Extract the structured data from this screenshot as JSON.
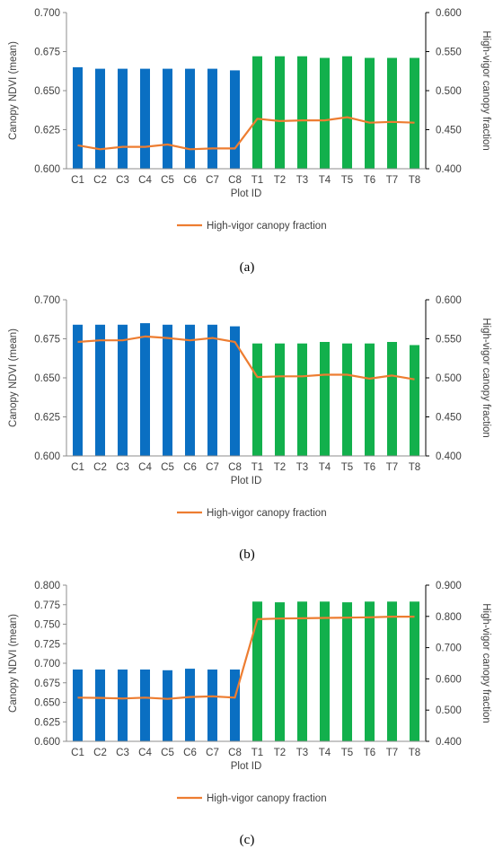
{
  "colors": {
    "control_bar": "#0a6fc2",
    "treatment_bar": "#12b04c",
    "line": "#ed7d31",
    "axis": "#8c8c8c"
  },
  "chart_data": [
    {
      "type": "bar",
      "panel": "a",
      "caption": "(a)",
      "categories": [
        "C1",
        "C2",
        "C3",
        "C4",
        "C5",
        "C6",
        "C7",
        "C8",
        "T1",
        "T2",
        "T3",
        "T4",
        "T5",
        "T6",
        "T7",
        "T8"
      ],
      "xlabel": "Plot ID",
      "ylabel": "Canopy NDVI (mean)",
      "ylabel_right": "High-vigor canopy fraction",
      "ylim": [
        0.6,
        0.7
      ],
      "yticks": [
        "0.600",
        "0.625",
        "0.650",
        "0.675",
        "0.700"
      ],
      "ylim_right": [
        0.4,
        0.6
      ],
      "yticks_right": [
        "0.400",
        "0.450",
        "0.500",
        "0.550",
        "0.600"
      ],
      "series": [
        {
          "values": [
            0.665,
            0.664,
            0.664,
            0.664,
            0.664,
            0.664,
            0.664,
            0.663,
            0.672,
            0.672,
            0.672,
            0.671,
            0.672,
            0.671,
            0.671,
            0.671
          ]
        },
        {
          "name": "High-vigor canopy fraction",
          "type": "line",
          "axis": "right",
          "values": [
            0.43,
            0.425,
            0.428,
            0.428,
            0.431,
            0.425,
            0.426,
            0.426,
            0.464,
            0.461,
            0.462,
            0.462,
            0.466,
            0.459,
            0.46,
            0.459
          ]
        }
      ],
      "legend": "bottom"
    },
    {
      "type": "bar",
      "panel": "b",
      "caption": "(b)",
      "categories": [
        "C1",
        "C2",
        "C3",
        "C4",
        "C5",
        "C6",
        "C7",
        "C8",
        "T1",
        "T2",
        "T3",
        "T4",
        "T5",
        "T6",
        "T7",
        "T8"
      ],
      "xlabel": "Plot ID",
      "ylabel": "Canopy NDVI (mean)",
      "ylabel_right": "High-vigor canopy fraction",
      "ylim": [
        0.6,
        0.7
      ],
      "yticks": [
        "0.600",
        "0.625",
        "0.650",
        "0.675",
        "0.700"
      ],
      "ylim_right": [
        0.4,
        0.6
      ],
      "yticks_right": [
        "0.400",
        "0.450",
        "0.500",
        "0.550",
        "0.600"
      ],
      "series": [
        {
          "values": [
            0.684,
            0.684,
            0.684,
            0.685,
            0.684,
            0.684,
            0.684,
            0.683,
            0.672,
            0.672,
            0.672,
            0.673,
            0.672,
            0.672,
            0.673,
            0.671
          ]
        },
        {
          "name": "High-vigor canopy fraction",
          "type": "line",
          "axis": "right",
          "values": [
            0.546,
            0.548,
            0.548,
            0.553,
            0.551,
            0.548,
            0.551,
            0.546,
            0.501,
            0.502,
            0.502,
            0.504,
            0.504,
            0.499,
            0.503,
            0.498
          ]
        }
      ],
      "legend": "bottom"
    },
    {
      "type": "bar",
      "panel": "c",
      "caption": "(c)",
      "categories": [
        "C1",
        "C2",
        "C3",
        "C4",
        "C5",
        "C6",
        "C7",
        "C8",
        "T1",
        "T2",
        "T3",
        "T4",
        "T5",
        "T6",
        "T7",
        "T8"
      ],
      "xlabel": "Plot ID",
      "ylabel": "Canopy NDVI (mean)",
      "ylabel_right": "High-vigor canopy fraction",
      "ylim": [
        0.6,
        0.8
      ],
      "yticks": [
        "0.600",
        "0.625",
        "0.650",
        "0.675",
        "0.700",
        "0.725",
        "0.750",
        "0.775",
        "0.800"
      ],
      "ylim_right": [
        0.4,
        0.9
      ],
      "yticks_right": [
        "0.400",
        "0.500",
        "0.600",
        "0.700",
        "0.800",
        "0.900"
      ],
      "series": [
        {
          "values": [
            0.692,
            0.692,
            0.692,
            0.692,
            0.691,
            0.693,
            0.692,
            0.692,
            0.779,
            0.778,
            0.779,
            0.779,
            0.778,
            0.779,
            0.779,
            0.779
          ]
        },
        {
          "name": "High-vigor canopy fraction",
          "type": "line",
          "axis": "right",
          "values": [
            0.54,
            0.539,
            0.537,
            0.54,
            0.536,
            0.542,
            0.544,
            0.54,
            0.791,
            0.793,
            0.794,
            0.795,
            0.796,
            0.797,
            0.799,
            0.799
          ]
        }
      ],
      "legend": "bottom"
    }
  ]
}
